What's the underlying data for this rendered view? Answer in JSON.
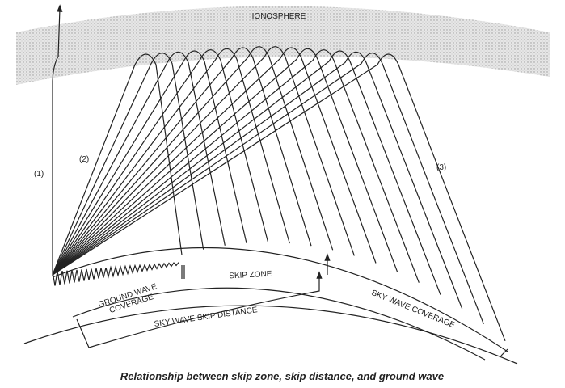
{
  "labels": {
    "ionosphere": "IONOSPHERE",
    "ray1": "(1)",
    "ray2": "(2)",
    "ray3": "(3)",
    "ground_wave_coverage": [
      "GROUND WAVE",
      "COVERAGE"
    ],
    "skip_zone": "SKIP ZONE",
    "sky_wave_skip_distance": "SKY WAVE SKIP DISTANCE",
    "sky_wave_coverage": "SKY WAVE COVERAGE"
  },
  "caption": "Relationship between skip zone, skip distance, and ground wave"
}
